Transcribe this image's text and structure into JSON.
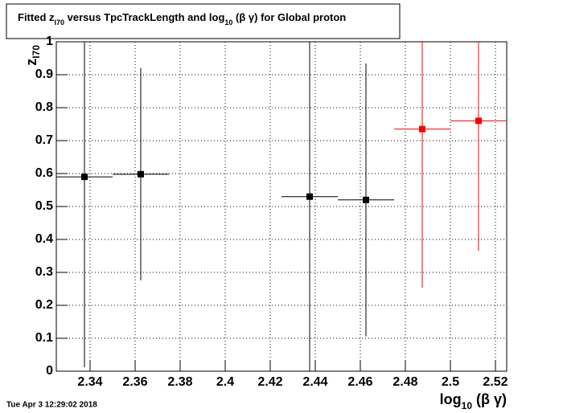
{
  "chart_data": {
    "type": "errorbar",
    "title": [
      "Fitted  z",
      "I70",
      " versus TpcTrackLength and log",
      "10",
      " (β γ) for Global proton"
    ],
    "x_label": [
      "log",
      "10",
      " (β γ)"
    ],
    "y_label": [
      "z",
      "I70"
    ],
    "timestamp": "Tue Apr  3 12:29:02 2018",
    "x": [
      2.3375,
      2.3625,
      2.4375,
      2.4625,
      2.4875,
      2.5125
    ],
    "xerr": [
      0.0125,
      0.0125,
      0.0125,
      0.0125,
      0.0125,
      0.0125
    ],
    "values": [
      0.59,
      0.598,
      0.53,
      0.52,
      0.735,
      0.76
    ],
    "yerr": [
      0.578,
      0.322,
      0.55,
      0.414,
      0.481,
      0.394
    ],
    "colors": [
      "#000000",
      "#000000",
      "#000000",
      "#000000",
      "#ff0000",
      "#ff0000"
    ],
    "xlim": [
      2.325,
      2.525
    ],
    "ylim": [
      0,
      1
    ],
    "xticks": [
      2.34,
      2.36,
      2.38,
      2.4,
      2.42,
      2.44,
      2.46,
      2.48,
      2.5,
      2.52
    ],
    "yticks": [
      0,
      0.1,
      0.2,
      0.3,
      0.4,
      0.5,
      0.6,
      0.7,
      0.8,
      0.9,
      1
    ],
    "grid": true
  }
}
